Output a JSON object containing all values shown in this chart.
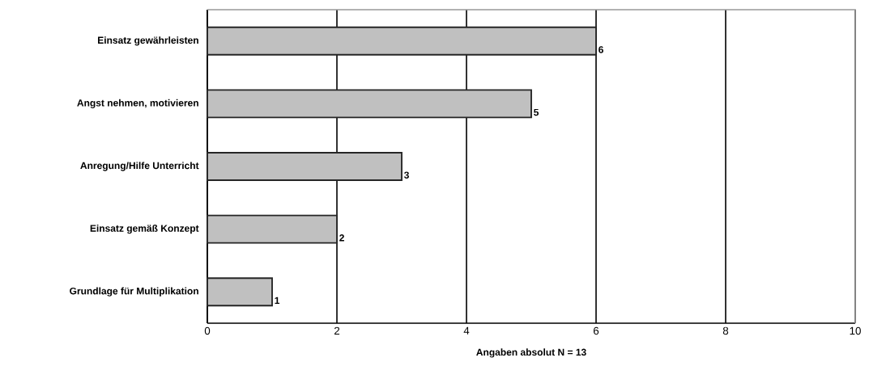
{
  "chart_data": {
    "type": "bar",
    "orientation": "horizontal",
    "categories": [
      "Einsatz gewährleisten",
      "Angst nehmen, motivieren",
      "Anregung/Hilfe Unterricht",
      "Einsatz gemäß Konzept",
      "Grundlage für Multiplikation"
    ],
    "values": [
      6,
      5,
      3,
      2,
      1
    ],
    "color": "#c0c0c0",
    "xlim": [
      0,
      10
    ],
    "xticks": [
      0,
      2,
      4,
      6,
      8,
      10
    ],
    "grid": "x",
    "data_labels": true,
    "xlabel": "Angaben absolut      N = 13"
  }
}
